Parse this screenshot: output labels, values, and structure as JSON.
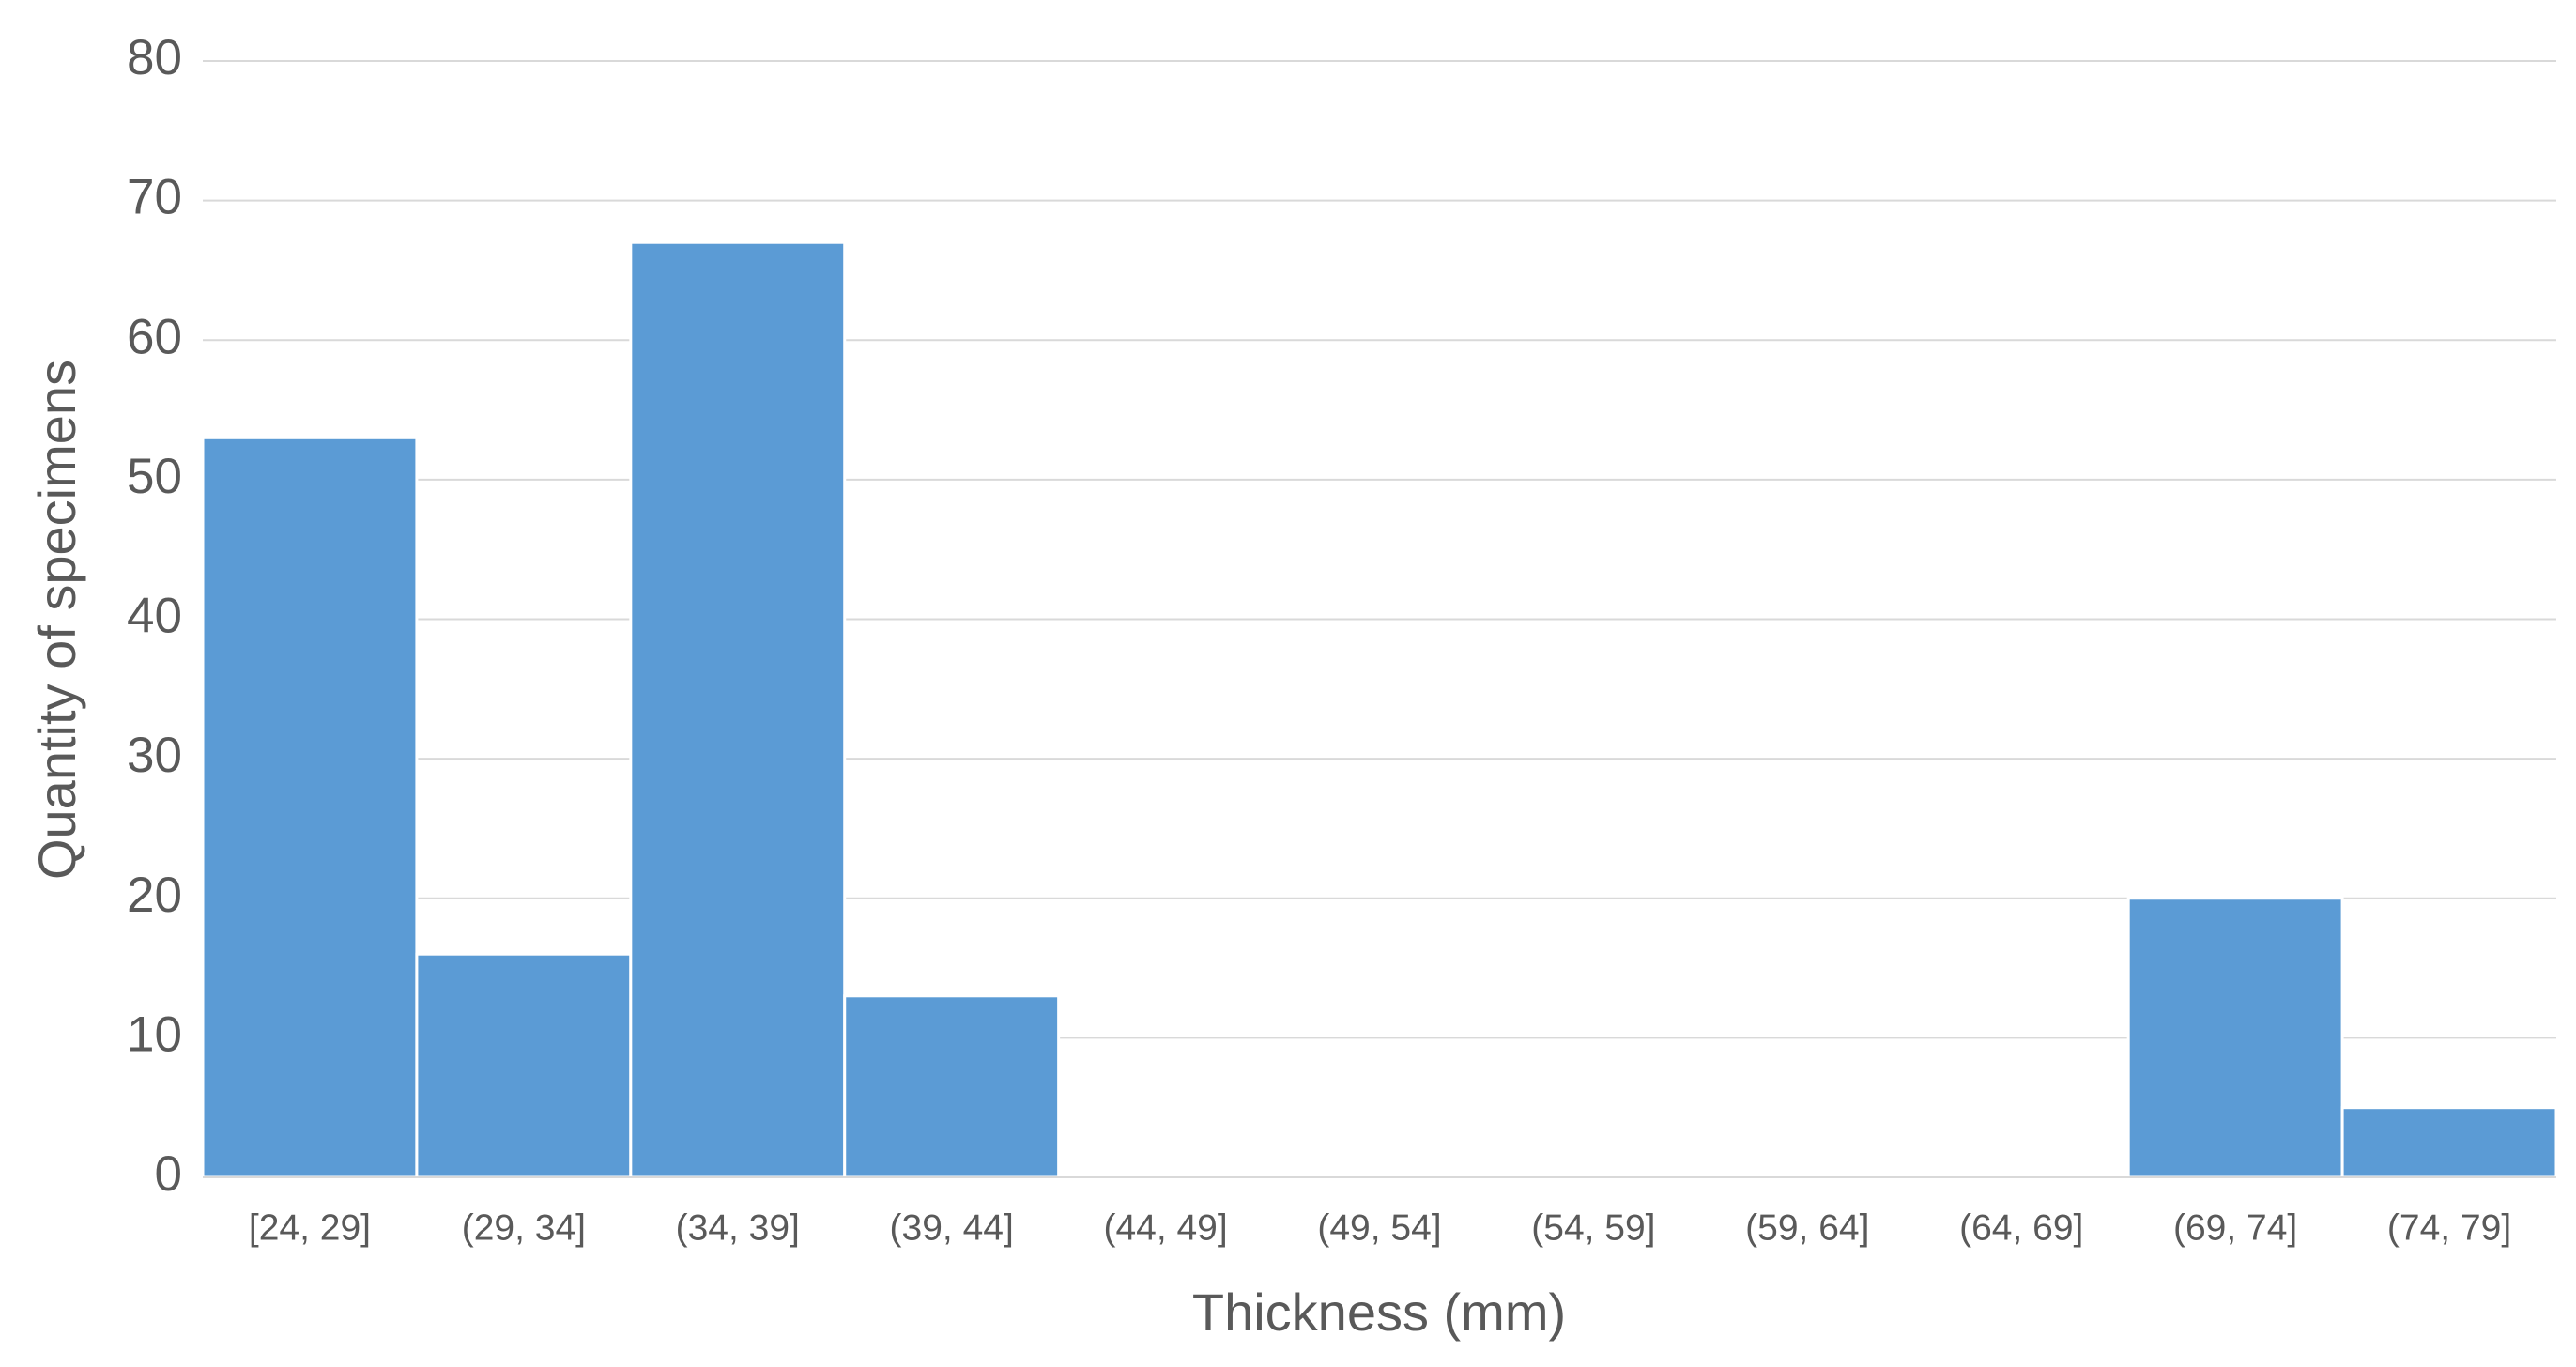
{
  "chart_data": {
    "type": "bar",
    "x_label": "Thickness (mm)",
    "y_label": "Quantity of specimens",
    "categories": [
      "[24, 29]",
      "(29, 34]",
      "(34, 39]",
      "(39, 44]",
      "(44, 49]",
      "(49, 54]",
      "(54, 59]",
      "(59, 64]",
      "(64, 69]",
      "(69, 74]",
      "(74, 79]"
    ],
    "values": [
      53,
      16,
      67,
      13,
      0,
      0,
      0,
      0,
      0,
      20,
      5
    ],
    "color": "#5b9bd5",
    "ylim": [
      0,
      80
    ],
    "yticks": [
      0,
      10,
      20,
      30,
      40,
      50,
      60,
      70,
      80
    ],
    "grid": true
  }
}
